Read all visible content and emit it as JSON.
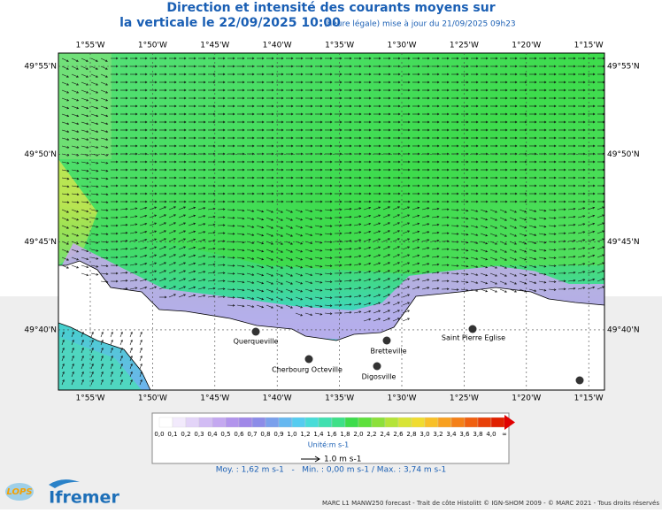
{
  "title": {
    "line1": "Direction et intensité des courants moyens sur",
    "line2": "la verticale le 22/09/2025 10:00",
    "note": "(heure légale) mise à jour du 21/09/2025 09h23"
  },
  "axes": {
    "longitudes": [
      "1°55'W",
      "1°50'W",
      "1°45'W",
      "1°40'W",
      "1°35'W",
      "1°30'W",
      "1°25'W",
      "1°20'W",
      "1°15'W"
    ],
    "latitudes": [
      "49°55'N",
      "49°50'N",
      "49°45'N",
      "49°40'N"
    ]
  },
  "places": [
    "Querqueville",
    "Cherbourg Octeville",
    "Bretteville",
    "Digosville",
    "Saint Pierre Eglise"
  ],
  "legend": {
    "ticks": [
      "0,0",
      "0,1",
      "0,2",
      "0,3",
      "0,4",
      "0,5",
      "0,6",
      "0,7",
      "0,8",
      "0,9",
      "1,0",
      "1,2",
      "1,4",
      "1,6",
      "1,8",
      "2,0",
      "2,2",
      "2,4",
      "2,6",
      "2,8",
      "3,0",
      "3,2",
      "3,4",
      "3,6",
      "3,8",
      "4,0",
      "∞"
    ],
    "unit": "Unité:m s-1",
    "scale": "1.0 m s-1"
  },
  "stats": "Moy. : 1,62 m s-1   -   Min. : 0,00 m s-1 / Max. : 3,74 m s-1",
  "logos": [
    "LOPS",
    "Ifremer"
  ],
  "footer": "MARC L1 MANW250 forecast - Trait de côte Histolitt © IGN-SHOM 2009 - © MARC 2021 - Tous droits réservés"
}
